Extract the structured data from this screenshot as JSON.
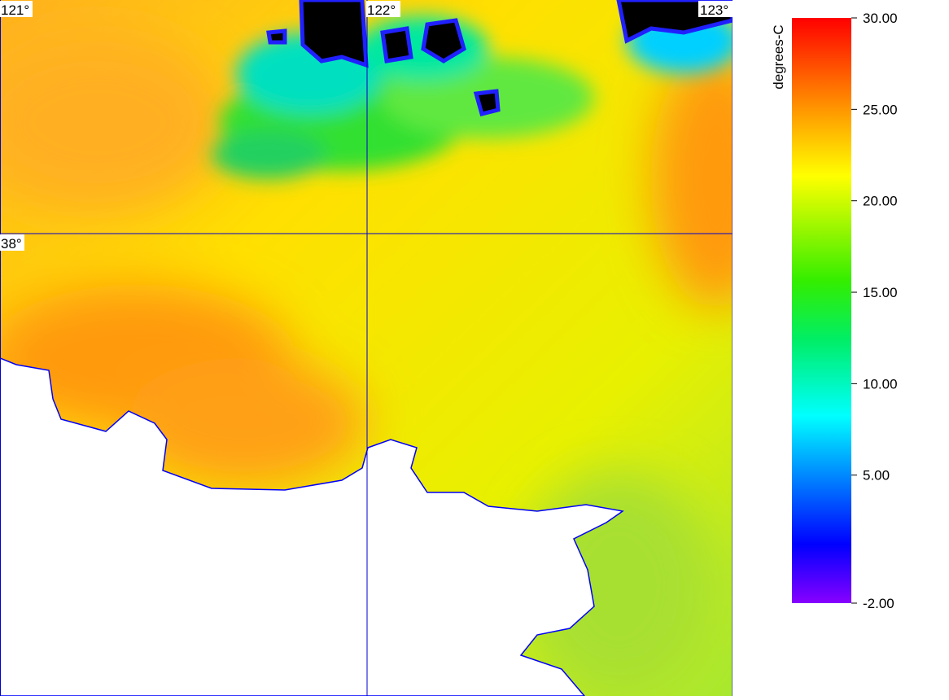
{
  "map": {
    "grid_labels": {
      "longitude": [
        "121°",
        "122°",
        "123°"
      ],
      "latitude": [
        "38°"
      ]
    },
    "colorbar": {
      "label": "degrees-C",
      "range": [
        -2,
        30
      ],
      "ticks": [
        {
          "value": 30,
          "label": "30.00"
        },
        {
          "value": 25,
          "label": "25.00"
        },
        {
          "value": 20,
          "label": "20.00"
        },
        {
          "value": 15,
          "label": "15.00"
        },
        {
          "value": 10,
          "label": "10.00"
        },
        {
          "value": 5,
          "label": "5.00"
        },
        {
          "value": -2,
          "label": "-2.00"
        }
      ]
    }
  }
}
